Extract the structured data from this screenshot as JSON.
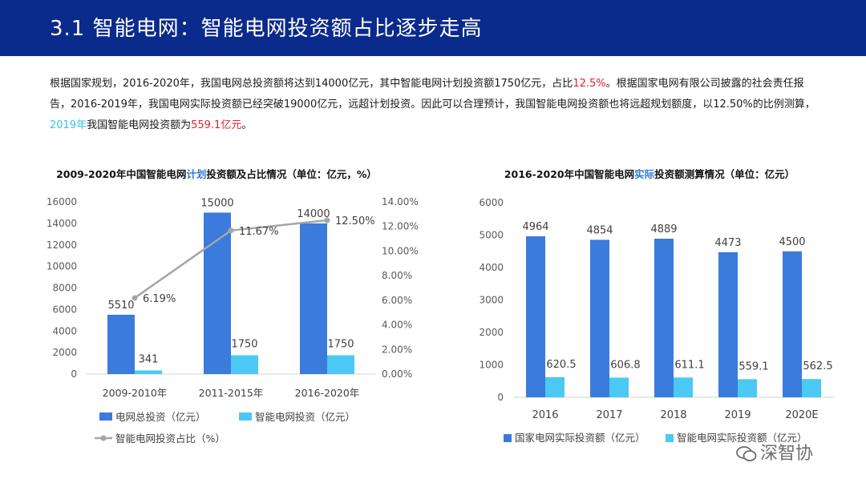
{
  "header": {
    "title": "3.1 智能电网：智能电网投资额占比逐步走高",
    "bg_color": "#0a2a8c"
  },
  "paragraph": {
    "p1": "根据国家规划，2016-2020年，我国电网总投资额将达到14000亿元，其中智能电网计划投资额1750亿元，占比",
    "p1_red": "12.5%",
    "p2": "。根据国家电网有限公司披露的社会责任报告，2016-2019年，我国电网实际投资额已经突破19000亿元，远超计划投资。因此可以合理预计，我国智能电网投资额也将远超规划额度，以12.50%的比例测算，",
    "p2_blue": "2019年",
    "p3": "我国智能电网投资额为",
    "p3_red": "559.1亿元",
    "p4": "。"
  },
  "chart_data": [
    {
      "type": "bar",
      "title_pre": "2009-2020年中国智能电网",
      "title_kw": "计划",
      "title_post": "投资额及占比情况（单位：亿元，%）",
      "categories": [
        "2009-2010年",
        "2011-2015年",
        "2016-2020年"
      ],
      "series": [
        {
          "name": "电网总投资（亿元）",
          "values": [
            5510,
            15000,
            14000
          ],
          "color": "#3a7bdc"
        },
        {
          "name": "智能电网投资（亿元）",
          "values": [
            341,
            1750,
            1750
          ],
          "color": "#4cc8f4"
        }
      ],
      "line_series": {
        "name": "智能电网投资占比（%）",
        "values": [
          6.19,
          11.67,
          12.5
        ],
        "labels": [
          "6.19%",
          "11.67%",
          "12.50%"
        ],
        "color": "#a6a6a6"
      },
      "ylim": [
        0,
        16000
      ],
      "yticks": [
        "0",
        "2000",
        "4000",
        "6000",
        "8000",
        "10000",
        "12000",
        "14000",
        "16000"
      ],
      "y2lim": [
        0,
        14
      ],
      "y2ticks": [
        "0.00%",
        "2.00%",
        "4.00%",
        "6.00%",
        "8.00%",
        "10.00%",
        "12.00%",
        "14.00%"
      ],
      "legend": "bottom",
      "grid": false
    },
    {
      "type": "bar",
      "title_pre": "2016-2020年中国智能电网",
      "title_kw": "实际",
      "title_post": "投资额测算情况（单位：亿元）",
      "categories": [
        "2016",
        "2017",
        "2018",
        "2019",
        "2020E"
      ],
      "series": [
        {
          "name": "国家电网实际投资额（亿元）",
          "values": [
            4964,
            4854,
            4889,
            4473,
            4500
          ],
          "labels": [
            "4964",
            "4854",
            "4889",
            "4473",
            "4500"
          ],
          "color": "#3a7bdc"
        },
        {
          "name": "智能电网实际投资额（亿元）",
          "values": [
            620.5,
            606.8,
            611.1,
            559.1,
            562.5
          ],
          "labels": [
            "620.5",
            "606.8",
            "611.1",
            "559.1",
            "562.5"
          ],
          "color": "#4cc8f4"
        }
      ],
      "ylim": [
        0,
        6000
      ],
      "yticks": [
        "0",
        "1000",
        "2000",
        "3000",
        "4000",
        "5000",
        "6000"
      ],
      "legend": "bottom",
      "grid": false
    }
  ],
  "logo": {
    "text": "深智协"
  }
}
